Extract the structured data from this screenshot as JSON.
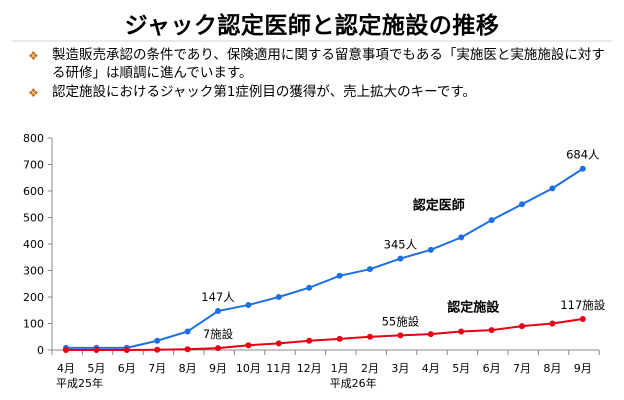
{
  "slide": {
    "title": "ジャック認定医師と認定施設の推移",
    "bullets": [
      "製造販売承認の条件であり、保険適用に関する留意事項でもある「実施医と実施施設に対する研修」は順調に進んでいます。",
      "認定施設におけるジャック第1症例目の獲得が、売上拡大のキーです。"
    ],
    "bullet_icon": "diamond-bullet-icon",
    "bullet_color": "#c8701e"
  },
  "chart_data": {
    "type": "line",
    "categories": [
      "4月",
      "5月",
      "6月",
      "7月",
      "8月",
      "9月",
      "10月",
      "11月",
      "12月",
      "1月",
      "2月",
      "3月",
      "4月",
      "5月",
      "6月",
      "7月",
      "8月",
      "9月"
    ],
    "era_labels": [
      {
        "index": 0,
        "label": "平成25年"
      },
      {
        "index": 9,
        "label": "平成26年"
      }
    ],
    "yticks": [
      0,
      100,
      200,
      300,
      400,
      500,
      600,
      700,
      800
    ],
    "ylim": [
      0,
      800
    ],
    "grid": false,
    "series": [
      {
        "name": "認定医師",
        "color": "#1e6fe6",
        "values": [
          8,
          8,
          8,
          35,
          70,
          147,
          170,
          200,
          235,
          280,
          305,
          345,
          378,
          425,
          490,
          550,
          610,
          684
        ]
      },
      {
        "name": "認定施設",
        "color": "#e60012",
        "values": [
          0,
          0,
          0,
          1,
          3,
          7,
          18,
          25,
          35,
          42,
          50,
          55,
          60,
          70,
          75,
          90,
          100,
          117
        ]
      }
    ],
    "annotations": [
      {
        "text": "684人",
        "series": 0,
        "index": 17
      },
      {
        "text": "345人",
        "series": 0,
        "index": 11
      },
      {
        "text": "147人",
        "series": 0,
        "index": 5
      },
      {
        "text": "117施設",
        "series": 1,
        "index": 17
      },
      {
        "text": "55施設",
        "series": 1,
        "index": 11
      },
      {
        "text": "7施設",
        "series": 1,
        "index": 5
      }
    ]
  }
}
